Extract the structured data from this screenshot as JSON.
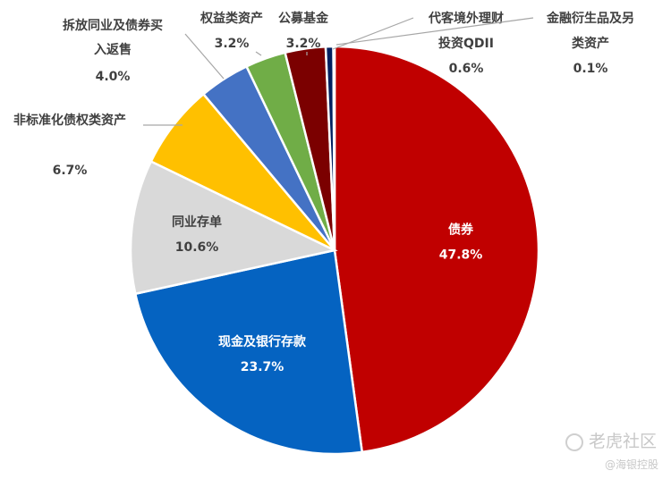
{
  "chart_data": {
    "type": "pie",
    "title": "",
    "slices": [
      {
        "label": "债券",
        "value": 47.8,
        "value_text": "47.8%",
        "color": "#C00000"
      },
      {
        "label": "现金及银行存款",
        "value": 23.7,
        "value_text": "23.7%",
        "color": "#0563C1"
      },
      {
        "label": "同业存单",
        "value": 10.6,
        "value_text": "10.6%",
        "color": "#D9D9D9"
      },
      {
        "label": "非标准化债权类资产",
        "value": 6.7,
        "value_text": "6.7%",
        "color": "#FFC000"
      },
      {
        "label": "拆放同业及债券买入返售",
        "value": 4.0,
        "value_text": "4.0%",
        "color": "#4472C4"
      },
      {
        "label": "权益类资产",
        "value": 3.2,
        "value_text": "3.2%",
        "color": "#70AD47"
      },
      {
        "label": "公募基金",
        "value": 3.2,
        "value_text": "3.2%",
        "color": "#7B0000"
      },
      {
        "label": "代客境外理财投资QDII",
        "value": 0.6,
        "value_text": "0.6%",
        "color": "#002060"
      },
      {
        "label": "金融衍生品及另类资产",
        "value": 0.1,
        "value_text": "0.1%",
        "color": "#A5A5A5"
      }
    ]
  },
  "watermark": {
    "main": "老虎社区",
    "sub": "@海银控股"
  }
}
